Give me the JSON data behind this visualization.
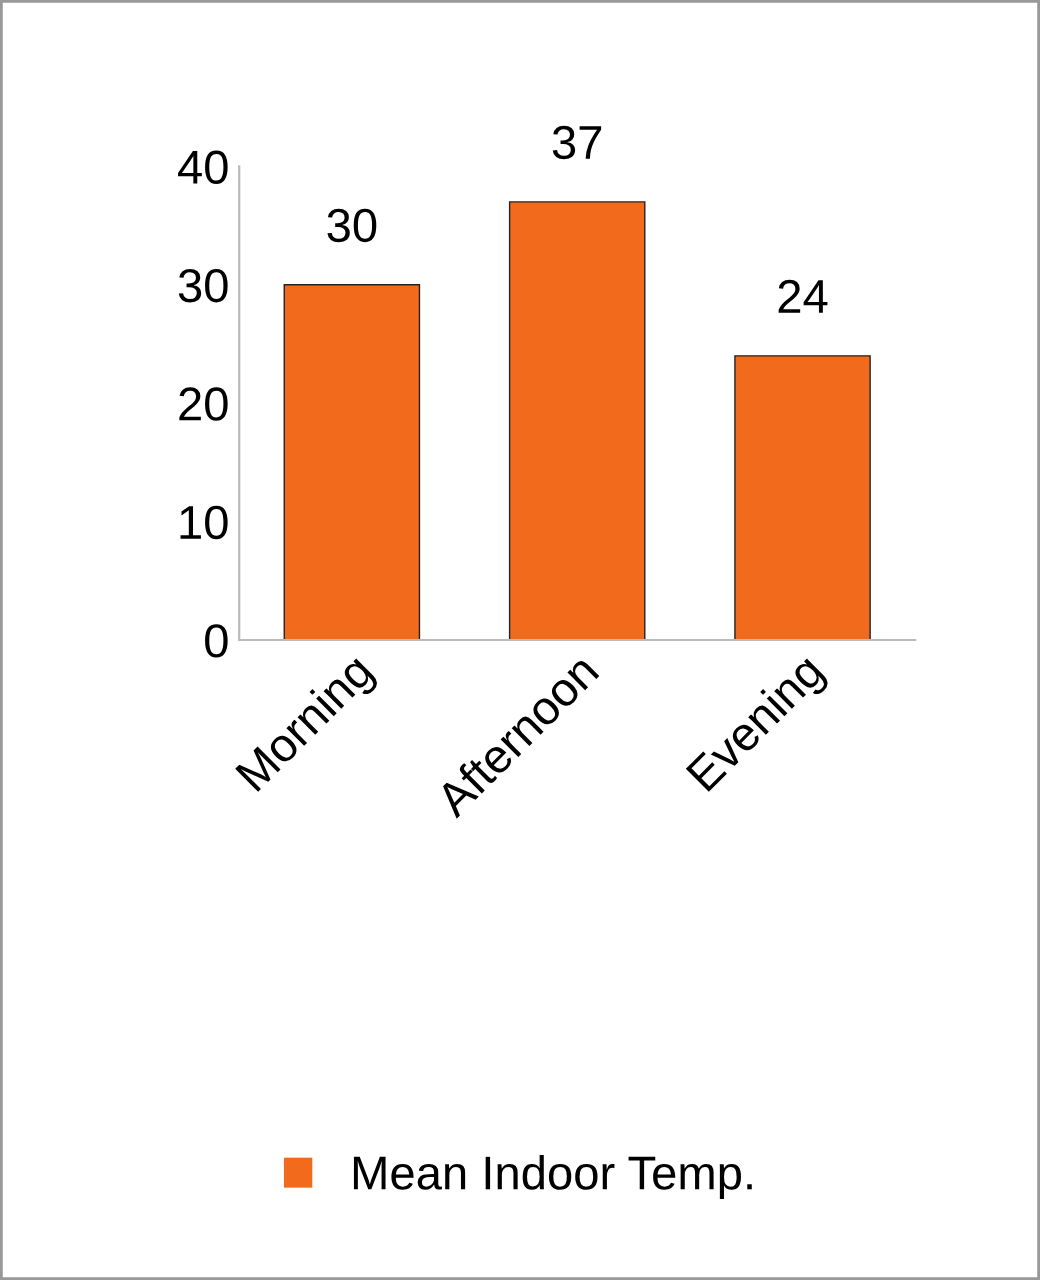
{
  "chart_data": {
    "type": "bar",
    "categories": [
      "Morning",
      "Afternoon",
      "Evening"
    ],
    "series": [
      {
        "name": "Mean Indoor Temp.",
        "color": "#f26a1b",
        "values": [
          30,
          37,
          24
        ]
      }
    ],
    "ylim": [
      0,
      40
    ],
    "yticks": [
      0,
      10,
      20,
      30,
      40
    ],
    "data_labels": true,
    "grid": false,
    "legend": "bottom"
  }
}
